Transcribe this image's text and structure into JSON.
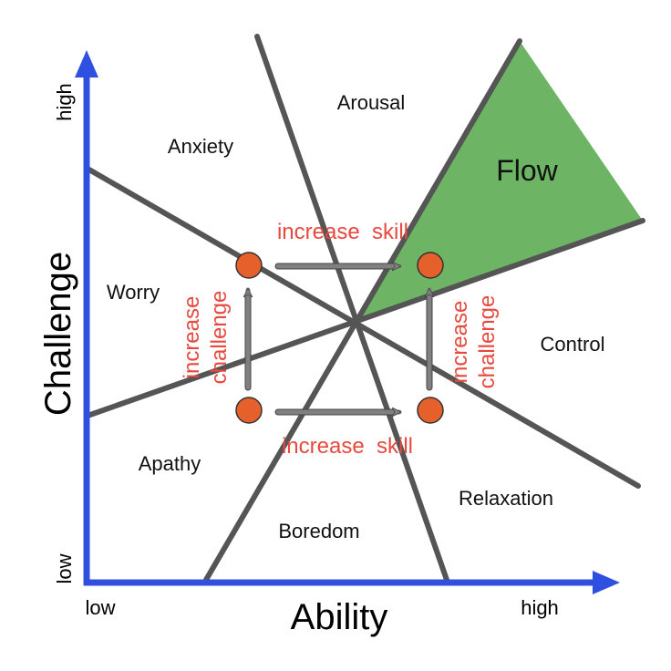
{
  "axes": {
    "y_label": "Challenge",
    "x_label": "Ability",
    "y_high": "high",
    "y_low": "low",
    "x_low": "low",
    "x_high": "high",
    "color": "#2f4fe0"
  },
  "regions": {
    "arousal": "Arousal",
    "anxiety": "Anxiety",
    "flow": "Flow",
    "worry": "Worry",
    "control": "Control",
    "apathy": "Apathy",
    "relaxation": "Relaxation",
    "boredom": "Boredom"
  },
  "annotations": {
    "skill_top": "increase  skill",
    "skill_bottom": "increase  skill",
    "challenge_left_1": "increase",
    "challenge_left_2": "challenge",
    "challenge_right_1": "increase",
    "challenge_right_2": "challenge"
  },
  "colors": {
    "flow": "#6db565",
    "line": "#555555",
    "dot": "#e5602a",
    "arrow": "#808080",
    "annotation": "#e8493f"
  }
}
